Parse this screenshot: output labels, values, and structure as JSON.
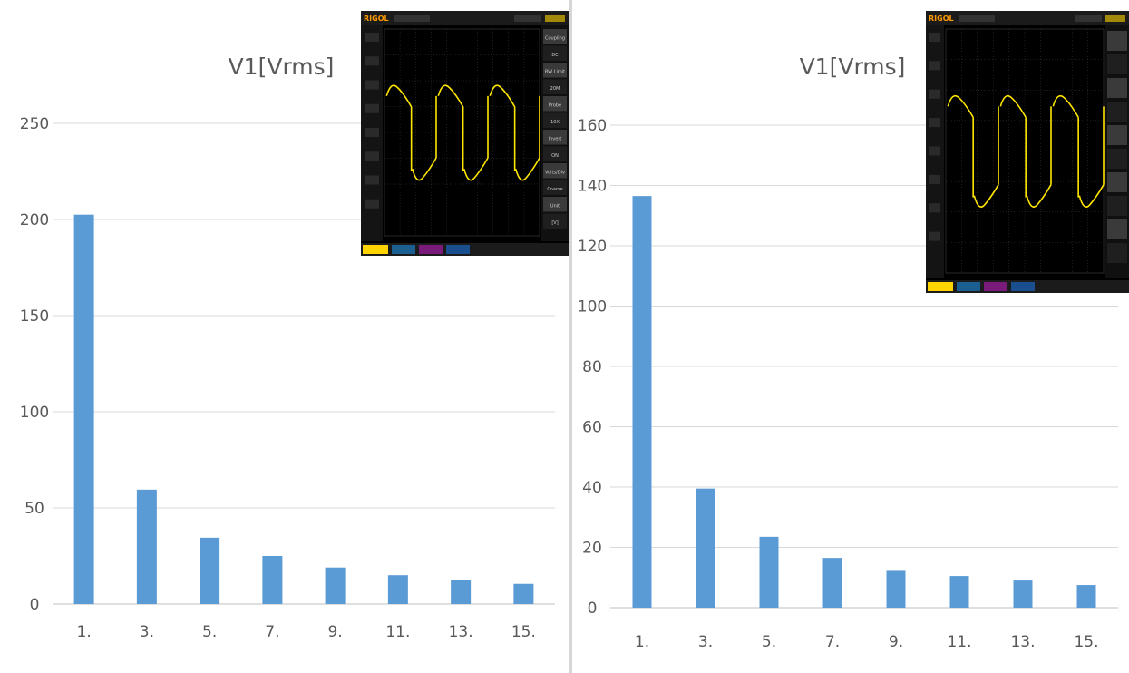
{
  "chart_data": [
    {
      "type": "bar",
      "title": "V1[Vrms]",
      "categories": [
        "1.",
        "3.",
        "5.",
        "7.",
        "9.",
        "11.",
        "13.",
        "15."
      ],
      "values": [
        202.5,
        59.5,
        34.5,
        25,
        19,
        15,
        12.5,
        10.5
      ],
      "ylim": [
        0,
        250
      ],
      "yticks": [
        0,
        50,
        100,
        150,
        200,
        250
      ],
      "grid": true,
      "bar_color": "#5b9bd5"
    },
    {
      "type": "bar",
      "title": "V1[Vrms]",
      "categories": [
        "1.",
        "3.",
        "5.",
        "7.",
        "9.",
        "11.",
        "13.",
        "15."
      ],
      "values": [
        136.5,
        39.5,
        23.5,
        16.5,
        12.5,
        10.5,
        9,
        7.5
      ],
      "ylim": [
        0,
        160
      ],
      "yticks": [
        0,
        20,
        40,
        60,
        80,
        100,
        120,
        140,
        160
      ],
      "grid": true,
      "bar_color": "#5b9bd5"
    }
  ],
  "oscilloscopes": [
    {
      "logo": "RIGOL",
      "side_menu": [
        "Coupling",
        "DC",
        "BW Limit",
        "20M",
        "Probe",
        "10X",
        "Invert",
        "ON",
        "Volts/Div",
        "Coarse",
        "Unit",
        "[V]"
      ],
      "trace_color": "#ffe600"
    },
    {
      "logo": "RIGOL",
      "side_menu": [],
      "trace_color": "#ffe600"
    }
  ]
}
